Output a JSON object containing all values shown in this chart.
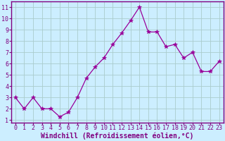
{
  "x": [
    0,
    1,
    2,
    3,
    4,
    5,
    6,
    7,
    8,
    9,
    10,
    11,
    12,
    13,
    14,
    15,
    16,
    17,
    18,
    19,
    20,
    21,
    22,
    23
  ],
  "y": [
    3.0,
    2.0,
    3.0,
    2.0,
    2.0,
    1.3,
    1.7,
    3.0,
    4.7,
    5.7,
    6.5,
    7.7,
    8.7,
    9.8,
    11.0,
    8.8,
    8.8,
    7.5,
    7.7,
    6.5,
    7.0,
    5.3,
    5.3,
    6.2
  ],
  "line_color": "#990099",
  "marker": "*",
  "marker_size": 4,
  "bg_color": "#cceeff",
  "grid_color": "#aacccc",
  "xlabel": "Windchill (Refroidissement éolien,°C)",
  "xlabel_color": "#800080",
  "tick_label_color": "#800080",
  "axis_color": "#800080",
  "xlim": [
    -0.5,
    23.5
  ],
  "ylim": [
    0.8,
    11.5
  ],
  "yticks": [
    1,
    2,
    3,
    4,
    5,
    6,
    7,
    8,
    9,
    10,
    11
  ],
  "xticks": [
    0,
    1,
    2,
    3,
    4,
    5,
    6,
    7,
    8,
    9,
    10,
    11,
    12,
    13,
    14,
    15,
    16,
    17,
    18,
    19,
    20,
    21,
    22,
    23
  ],
  "tick_fontsize": 6.0,
  "xlabel_fontsize": 7.0
}
